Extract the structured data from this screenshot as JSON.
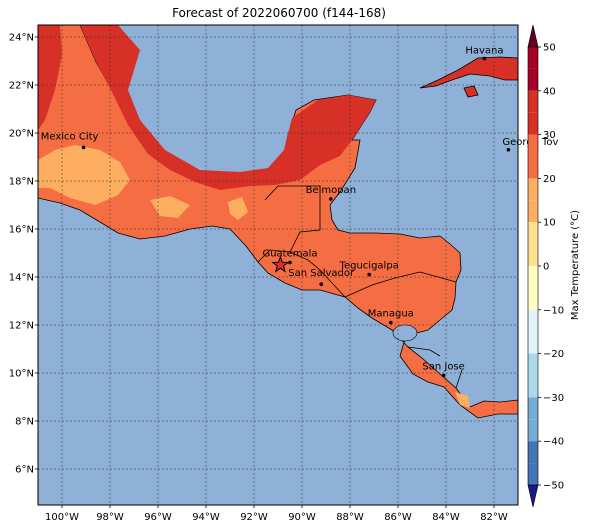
{
  "title": "Forecast of 2022060700 (f144-168)",
  "map": {
    "lon_range": [
      -101,
      -81
    ],
    "lat_range": [
      4.5,
      24.5
    ],
    "lon_ticks": [
      {
        "value": -100,
        "label": "100°W"
      },
      {
        "value": -98,
        "label": "98°W"
      },
      {
        "value": -96,
        "label": "96°W"
      },
      {
        "value": -94,
        "label": "94°W"
      },
      {
        "value": -92,
        "label": "92°W"
      },
      {
        "value": -90,
        "label": "90°W"
      },
      {
        "value": -88,
        "label": "88°W"
      },
      {
        "value": -86,
        "label": "86°W"
      },
      {
        "value": -84,
        "label": "84°W"
      },
      {
        "value": -82,
        "label": "82°W"
      }
    ],
    "lat_ticks": [
      {
        "value": 6,
        "label": "6°N"
      },
      {
        "value": 8,
        "label": "8°N"
      },
      {
        "value": 10,
        "label": "10°N"
      },
      {
        "value": 12,
        "label": "12°N"
      },
      {
        "value": 14,
        "label": "14°N"
      },
      {
        "value": 16,
        "label": "16°N"
      },
      {
        "value": 18,
        "label": "18°N"
      },
      {
        "value": 20,
        "label": "20°N"
      },
      {
        "value": 22,
        "label": "22°N"
      },
      {
        "value": 24,
        "label": "24°N"
      }
    ],
    "cities": [
      {
        "name": "Havana",
        "lon": -82.4,
        "lat": 23.1
      },
      {
        "name": "Mexico City",
        "lon": -99.1,
        "lat": 19.4
      },
      {
        "name": "George Tov",
        "lon": -81.4,
        "lat": 19.3
      },
      {
        "name": "Belmopan",
        "lon": -88.8,
        "lat": 17.25
      },
      {
        "name": "Guatemala",
        "lon": -90.5,
        "lat": 14.6
      },
      {
        "name": "San Salvador",
        "lon": -89.2,
        "lat": 13.7
      },
      {
        "name": "Tegucigalpa",
        "lon": -87.2,
        "lat": 14.1
      },
      {
        "name": "Managua",
        "lon": -86.3,
        "lat": 12.1
      },
      {
        "name": "San Jose",
        "lon": -84.1,
        "lat": 9.9
      }
    ],
    "marker": {
      "lon": -90.9,
      "lat": 14.5
    },
    "colors": {
      "ocean": "#8fb1d7",
      "land_warm": "#f46d43",
      "land_hot": "#d73027",
      "land_mild": "#fdae61",
      "border": "#000000"
    }
  },
  "colorbar": {
    "label": "Max Temperature (°C)",
    "ticks": [
      50,
      40,
      30,
      20,
      10,
      0,
      -10,
      -20,
      -30,
      -40,
      -50
    ],
    "colors": [
      "#67001f",
      "#a50026",
      "#d73027",
      "#f46d43",
      "#fdae61",
      "#fee090",
      "#ffffbf",
      "#e0f3f8",
      "#abd9e9",
      "#74add1",
      "#4575b4",
      "#313695",
      "#1a1a8c"
    ]
  }
}
